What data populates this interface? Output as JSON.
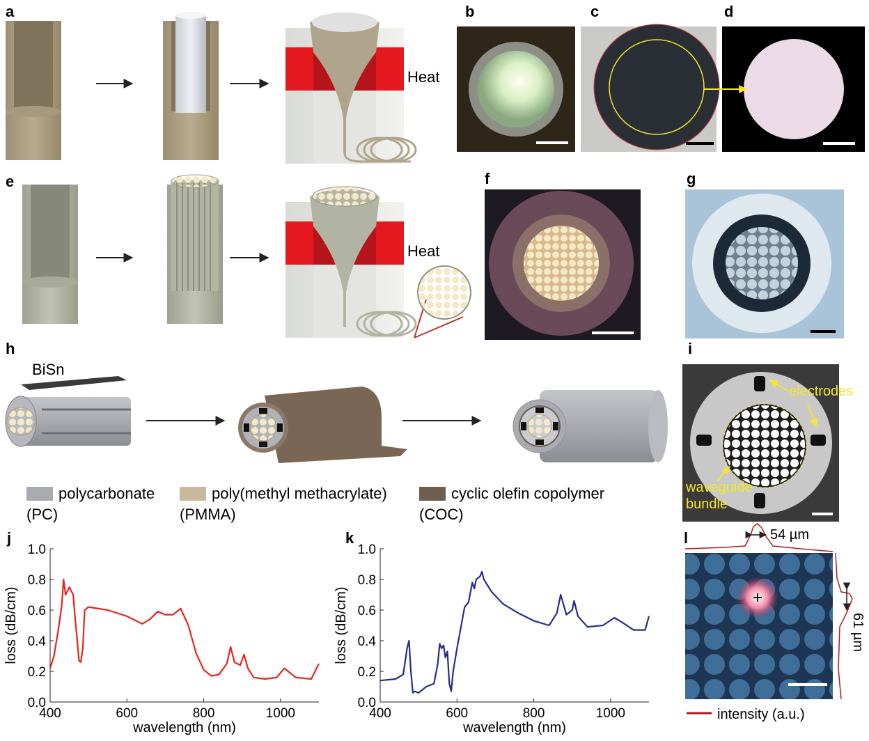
{
  "panel_labels": [
    "a",
    "b",
    "c",
    "d",
    "e",
    "f",
    "g",
    "h",
    "i",
    "j",
    "k",
    "l"
  ],
  "annotations": {
    "heat_a": "Heat",
    "heat_e": "Heat",
    "bisn": "BiSn",
    "electrodes": "electrodes",
    "waveguide_bundle": [
      "waveguide",
      "bundle"
    ],
    "width_x": "54 µm",
    "width_y": "61 µm",
    "intensity": "intensity (a.u.)"
  },
  "materials": [
    {
      "lines": [
        "polycarbonate",
        "(PC)"
      ],
      "color": "#a9abb1"
    },
    {
      "lines": [
        "poly(methyl methacrylate)",
        "(PMMA)"
      ],
      "color": "#c9b99c"
    },
    {
      "lines": [
        "cyclic olefin copolymer",
        "(COC)"
      ],
      "color": "#6e5e4f"
    }
  ],
  "chart_data": [
    {
      "type": "line",
      "xlabel": "wavelength (nm)",
      "ylabel": "loss (dB/cm)",
      "xlim": [
        400,
        1100
      ],
      "ylim": [
        0,
        1
      ],
      "xticks": [
        400,
        600,
        800,
        1000
      ],
      "yticks": [
        {
          "value": 0,
          "label": "0.0"
        },
        0.2,
        0.4,
        0.6,
        0.8,
        {
          "value": 1,
          "label": "1.0"
        }
      ],
      "series": [
        {
          "color": "#e8231e",
          "x": [
            400,
            410,
            420,
            430,
            435,
            440,
            450,
            460,
            465,
            470,
            475,
            480,
            485,
            490,
            500,
            550,
            600,
            640,
            660,
            680,
            700,
            720,
            740,
            760,
            780,
            800,
            820,
            840,
            860,
            870,
            880,
            895,
            905,
            915,
            930,
            960,
            990,
            1010,
            1020,
            1040,
            1080,
            1100
          ],
          "values": [
            0.22,
            0.3,
            0.45,
            0.62,
            0.8,
            0.7,
            0.75,
            0.7,
            0.55,
            0.42,
            0.27,
            0.26,
            0.35,
            0.6,
            0.62,
            0.6,
            0.56,
            0.51,
            0.54,
            0.59,
            0.57,
            0.57,
            0.61,
            0.5,
            0.32,
            0.21,
            0.17,
            0.18,
            0.25,
            0.36,
            0.26,
            0.24,
            0.31,
            0.22,
            0.16,
            0.15,
            0.16,
            0.22,
            0.2,
            0.16,
            0.15,
            0.25
          ]
        }
      ]
    },
    {
      "type": "line",
      "xlabel": "wavelength (nm)",
      "ylabel": "loss (dB/cm)",
      "xlim": [
        400,
        1100
      ],
      "ylim": [
        0,
        1
      ],
      "xticks": [
        400,
        600,
        800,
        1000
      ],
      "yticks": [
        {
          "value": 0,
          "label": "0.0"
        },
        0.2,
        0.4,
        0.6,
        0.8,
        {
          "value": 1,
          "label": "1.0"
        }
      ],
      "series": [
        {
          "color": "#262b8f",
          "x": [
            400,
            440,
            460,
            470,
            475,
            480,
            485,
            490,
            500,
            520,
            540,
            550,
            555,
            560,
            565,
            570,
            575,
            580,
            585,
            590,
            600,
            620,
            630,
            640,
            645,
            650,
            660,
            665,
            670,
            690,
            720,
            760,
            800,
            840,
            860,
            870,
            885,
            900,
            905,
            915,
            940,
            980,
            1010,
            1030,
            1060,
            1090,
            1100
          ],
          "values": [
            0.14,
            0.15,
            0.18,
            0.35,
            0.4,
            0.2,
            0.06,
            0.07,
            0.06,
            0.1,
            0.12,
            0.25,
            0.38,
            0.35,
            0.37,
            0.29,
            0.33,
            0.12,
            0.07,
            0.2,
            0.35,
            0.62,
            0.65,
            0.78,
            0.74,
            0.8,
            0.82,
            0.85,
            0.8,
            0.72,
            0.64,
            0.58,
            0.53,
            0.5,
            0.58,
            0.7,
            0.57,
            0.6,
            0.66,
            0.56,
            0.49,
            0.5,
            0.55,
            0.52,
            0.47,
            0.47,
            0.56
          ]
        }
      ]
    }
  ]
}
